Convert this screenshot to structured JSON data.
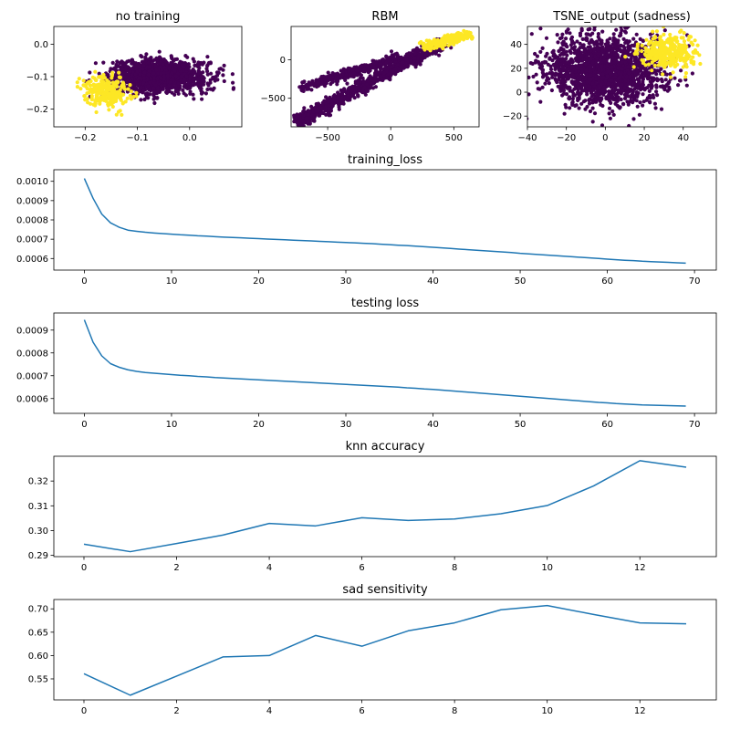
{
  "colors": {
    "purple": "#440154",
    "yellow": "#fde725",
    "line": "#1f77b4"
  },
  "chart_data": [
    {
      "type": "scatter",
      "title": "no training",
      "xlim": [
        -0.26,
        0.1
      ],
      "ylim": [
        -0.255,
        0.055
      ],
      "x_ticks": [
        -0.2,
        -0.1,
        0.0
      ],
      "x_tick_labels": [
        "−0.2",
        "−0.1",
        "0.0"
      ],
      "y_ticks": [
        -0.2,
        -0.1,
        0.0
      ],
      "y_tick_labels": [
        "−0.2",
        "−0.1",
        "0.0"
      ],
      "clusters": [
        {
          "class": "purple",
          "shape": "ellipse",
          "center": [
            -0.06,
            -0.1
          ],
          "spread": [
            0.11,
            0.06
          ],
          "count": 1400
        },
        {
          "class": "yellow",
          "shape": "ellipse",
          "center": [
            -0.16,
            -0.145
          ],
          "spread": [
            0.055,
            0.055
          ],
          "count": 280
        }
      ]
    },
    {
      "type": "scatter",
      "title": "RBM",
      "xlim": [
        -790,
        700
      ],
      "ylim": [
        -870,
        430
      ],
      "x_ticks": [
        -500,
        0,
        500
      ],
      "x_tick_labels": [
        "−500",
        "0",
        "500"
      ],
      "y_ticks": [
        -500,
        0
      ],
      "y_tick_labels": [
        "−500",
        "0"
      ],
      "clusters": [
        {
          "class": "purple",
          "shape": "band",
          "from": [
            -760,
            -820
          ],
          "to": [
            420,
            230
          ],
          "width": 70,
          "count": 900
        },
        {
          "class": "purple",
          "shape": "band",
          "from": [
            -720,
            -380
          ],
          "to": [
            80,
            40
          ],
          "width": 60,
          "count": 350
        },
        {
          "class": "yellow",
          "shape": "band",
          "from": [
            250,
            160
          ],
          "to": [
            640,
            340
          ],
          "width": 60,
          "count": 220
        }
      ]
    },
    {
      "type": "scatter",
      "title": "TSNE_output (sadness)",
      "xlim": [
        -40,
        57
      ],
      "ylim": [
        -29,
        55
      ],
      "x_ticks": [
        -40,
        -20,
        0,
        20,
        40
      ],
      "x_tick_labels": [
        "−40",
        "−20",
        "0",
        "20",
        "40"
      ],
      "y_ticks": [
        -20,
        0,
        20,
        40
      ],
      "y_tick_labels": [
        "−20",
        "0",
        "20",
        "40"
      ],
      "clusters": [
        {
          "class": "purple",
          "shape": "ellipse",
          "center": [
            0,
            18
          ],
          "spread": [
            38,
            34
          ],
          "count": 1700
        },
        {
          "class": "yellow",
          "shape": "ellipse",
          "center": [
            32,
            34
          ],
          "spread": [
            16,
            16
          ],
          "count": 360
        }
      ]
    },
    {
      "type": "line",
      "title": "training_loss",
      "xlim": [
        -3.5,
        72.5
      ],
      "ylim": [
        0.00054,
        0.00106
      ],
      "x_ticks": [
        0,
        10,
        20,
        30,
        40,
        50,
        60,
        70
      ],
      "x_tick_labels": [
        "0",
        "10",
        "20",
        "30",
        "40",
        "50",
        "60",
        "70"
      ],
      "y_ticks": [
        0.0006,
        0.0007,
        0.0008,
        0.0009,
        0.001
      ],
      "y_tick_labels": [
        "0.0006",
        "0.0007",
        "0.0008",
        "0.0009",
        "0.0010"
      ],
      "x": [
        0,
        1,
        2,
        3,
        4,
        5,
        6,
        7,
        8,
        9,
        10,
        11,
        12,
        13,
        14,
        15,
        16,
        17,
        18,
        19,
        20,
        21,
        22,
        23,
        24,
        25,
        26,
        27,
        28,
        29,
        30,
        31,
        32,
        33,
        34,
        35,
        36,
        37,
        38,
        39,
        40,
        41,
        42,
        43,
        44,
        45,
        46,
        47,
        48,
        49,
        50,
        51,
        52,
        53,
        54,
        55,
        56,
        57,
        58,
        59,
        60,
        61,
        62,
        63,
        64,
        65,
        66,
        67,
        68,
        69
      ],
      "y": [
        0.001015,
        0.000912,
        0.00083,
        0.000785,
        0.000762,
        0.000747,
        0.000741,
        0.000736,
        0.000732,
        0.000729,
        0.000726,
        0.000723,
        0.000721,
        0.000718,
        0.000716,
        0.000713,
        0.000711,
        0.000709,
        0.000707,
        0.000705,
        0.000703,
        0.000701,
        0.000699,
        0.000697,
        0.000695,
        0.000693,
        0.000691,
        0.000689,
        0.000687,
        0.000685,
        0.000683,
        0.000681,
        0.000679,
        0.000677,
        0.000674,
        0.000672,
        0.000669,
        0.000667,
        0.000664,
        0.000661,
        0.000658,
        0.000655,
        0.000652,
        0.000649,
        0.000646,
        0.000643,
        0.00064,
        0.000637,
        0.000634,
        0.000631,
        0.000627,
        0.000624,
        0.000621,
        0.000618,
        0.000615,
        0.000612,
        0.000609,
        0.000606,
        0.000603,
        0.0006,
        0.000597,
        0.000594,
        0.000591,
        0.000589,
        0.000586,
        0.000584,
        0.000582,
        0.00058,
        0.000578,
        0.000576
      ]
    },
    {
      "type": "line",
      "title": "testing loss",
      "xlim": [
        -3.5,
        72.5
      ],
      "ylim": [
        0.000535,
        0.000975
      ],
      "x_ticks": [
        0,
        10,
        20,
        30,
        40,
        50,
        60,
        70
      ],
      "x_tick_labels": [
        "0",
        "10",
        "20",
        "30",
        "40",
        "50",
        "60",
        "70"
      ],
      "y_ticks": [
        0.0006,
        0.0007,
        0.0008,
        0.0009
      ],
      "y_tick_labels": [
        "0.0006",
        "0.0007",
        "0.0008",
        "0.0009"
      ],
      "x": [
        0,
        1,
        2,
        3,
        4,
        5,
        6,
        7,
        8,
        9,
        10,
        11,
        12,
        13,
        14,
        15,
        16,
        17,
        18,
        19,
        20,
        21,
        22,
        23,
        24,
        25,
        26,
        27,
        28,
        29,
        30,
        31,
        32,
        33,
        34,
        35,
        36,
        37,
        38,
        39,
        40,
        41,
        42,
        43,
        44,
        45,
        46,
        47,
        48,
        49,
        50,
        51,
        52,
        53,
        54,
        55,
        56,
        57,
        58,
        59,
        60,
        61,
        62,
        63,
        64,
        65,
        66,
        67,
        68,
        69
      ],
      "y": [
        0.000945,
        0.000847,
        0.000787,
        0.000753,
        0.000737,
        0.000726,
        0.000719,
        0.000714,
        0.000711,
        0.000708,
        0.000705,
        0.000702,
        0.0007,
        0.000697,
        0.000695,
        0.000692,
        0.00069,
        0.000688,
        0.000686,
        0.000684,
        0.000682,
        0.00068,
        0.000678,
        0.000676,
        0.000674,
        0.000672,
        0.00067,
        0.000668,
        0.000666,
        0.000664,
        0.000662,
        0.00066,
        0.000658,
        0.000656,
        0.000654,
        0.000652,
        0.00065,
        0.000647,
        0.000645,
        0.000642,
        0.00064,
        0.000637,
        0.000634,
        0.000631,
        0.000628,
        0.000625,
        0.000622,
        0.000619,
        0.000616,
        0.000613,
        0.00061,
        0.000607,
        0.000604,
        0.000601,
        0.000598,
        0.000595,
        0.000592,
        0.000589,
        0.000586,
        0.000583,
        0.000581,
        0.000578,
        0.000576,
        0.000574,
        0.000572,
        0.000571,
        0.00057,
        0.000569,
        0.000568,
        0.000567
      ]
    },
    {
      "type": "line",
      "title": "knn accuracy",
      "xlim": [
        -0.65,
        13.65
      ],
      "ylim": [
        0.2895,
        0.33
      ],
      "x_ticks": [
        0,
        2,
        4,
        6,
        8,
        10,
        12
      ],
      "x_tick_labels": [
        "0",
        "2",
        "4",
        "6",
        "8",
        "10",
        "12"
      ],
      "y_ticks": [
        0.29,
        0.3,
        0.31,
        0.32
      ],
      "y_tick_labels": [
        "0.29",
        "0.30",
        "0.31",
        "0.32"
      ],
      "x": [
        0,
        1,
        2,
        3,
        4,
        5,
        6,
        7,
        8,
        9,
        10,
        11,
        12,
        13
      ],
      "y": [
        0.2945,
        0.2915,
        0.2948,
        0.2982,
        0.3029,
        0.3019,
        0.3052,
        0.3041,
        0.3047,
        0.3068,
        0.3101,
        0.318,
        0.3282,
        0.3256
      ]
    },
    {
      "type": "line",
      "title": "sad sensitivity",
      "xlim": [
        -0.65,
        13.65
      ],
      "ylim": [
        0.505,
        0.72
      ],
      "x_ticks": [
        0,
        2,
        4,
        6,
        8,
        10,
        12
      ],
      "x_tick_labels": [
        "0",
        "2",
        "4",
        "6",
        "8",
        "10",
        "12"
      ],
      "y_ticks": [
        0.55,
        0.6,
        0.65,
        0.7
      ],
      "y_tick_labels": [
        "0.55",
        "0.60",
        "0.65",
        "0.70"
      ],
      "x": [
        0,
        1,
        2,
        3,
        4,
        5,
        6,
        7,
        8,
        9,
        10,
        11,
        12,
        13
      ],
      "y": [
        0.561,
        0.515,
        0.556,
        0.597,
        0.6,
        0.643,
        0.62,
        0.653,
        0.67,
        0.698,
        0.707,
        0.688,
        0.67,
        0.668
      ]
    }
  ]
}
